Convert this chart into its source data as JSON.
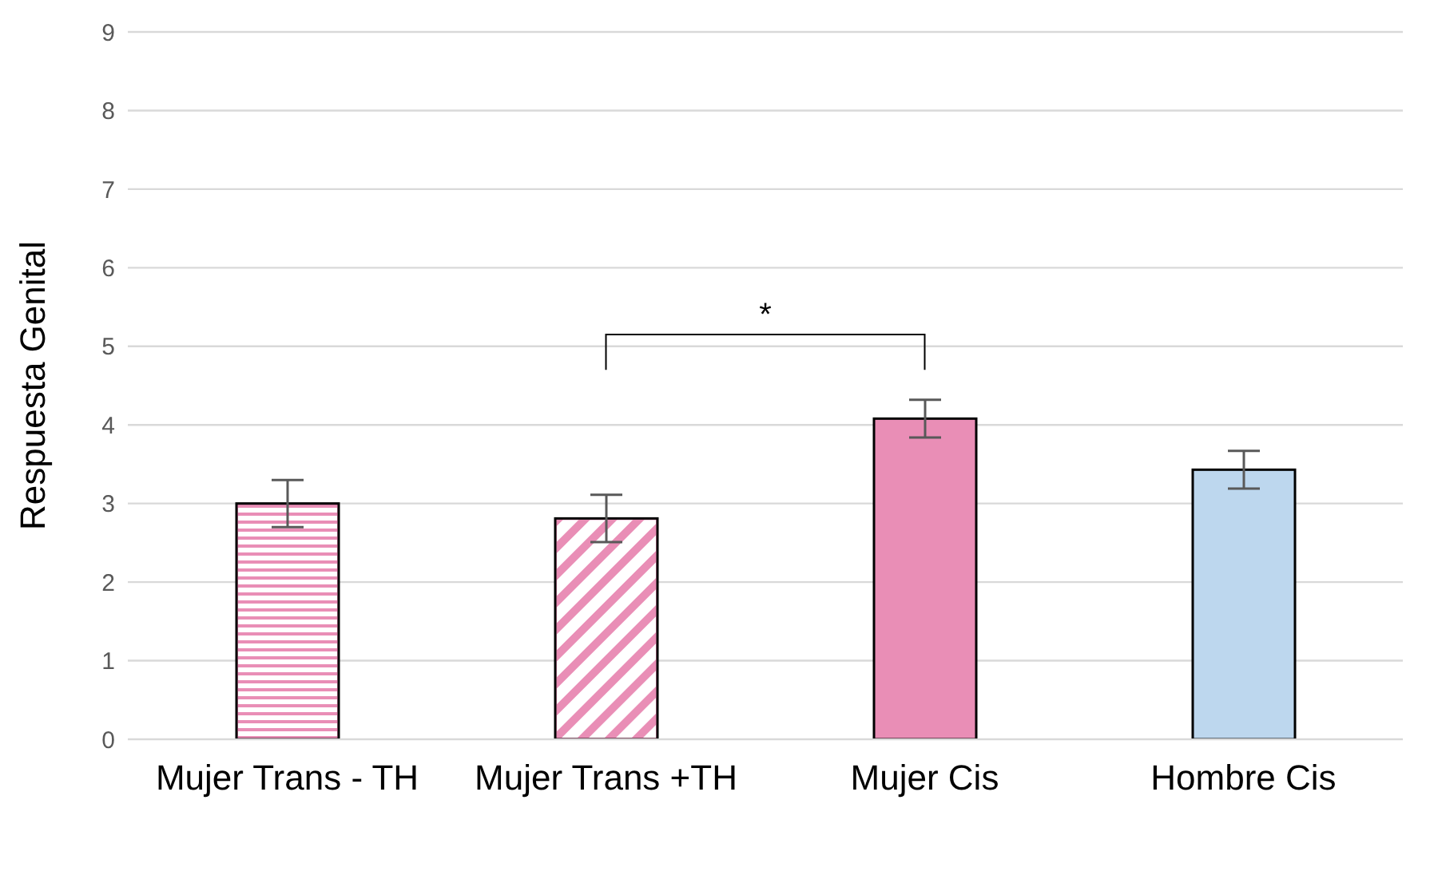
{
  "chart_data": {
    "type": "bar",
    "ylabel": "Respuesta Genital",
    "categories": [
      "Mujer Trans - TH",
      "Mujer Trans +TH",
      "Mujer Cis",
      "Hombre Cis"
    ],
    "values": [
      3.0,
      2.81,
      4.08,
      3.43
    ],
    "errors": [
      0.3,
      0.3,
      0.24,
      0.24
    ],
    "colors": [
      "#e98eb6",
      "#e98eb6",
      "#e98eb6",
      "#bdd7ee"
    ],
    "ylim": [
      0,
      9
    ],
    "yticks": [
      0,
      1,
      2,
      3,
      4,
      5,
      6,
      7,
      8,
      9
    ],
    "grid": "y",
    "annotations": [
      "*"
    ]
  }
}
